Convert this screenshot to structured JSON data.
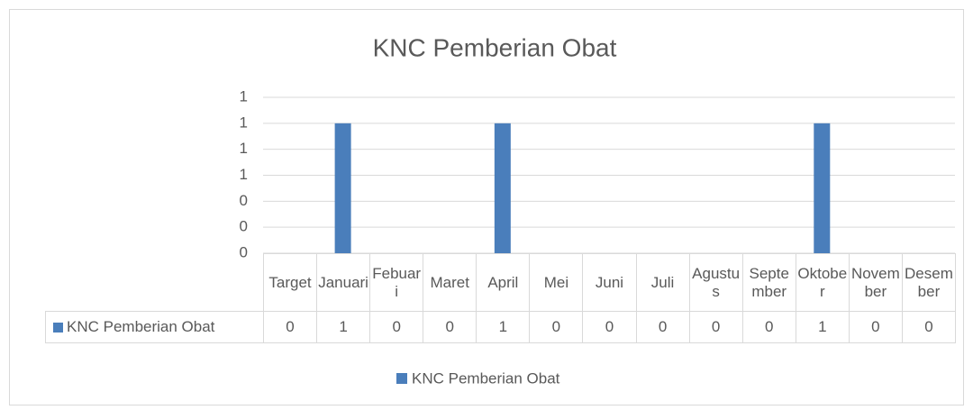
{
  "chart_data": {
    "type": "bar",
    "title": "KNC Pemberian Obat",
    "categories": [
      "Target",
      "Januari",
      "Febuari",
      "Maret",
      "April",
      "Mei",
      "Juni",
      "Juli",
      "Agustus",
      "September",
      "Oktober",
      "November",
      "Desember"
    ],
    "series": [
      {
        "name": "KNC Pemberian Obat",
        "color": "#4a7ebb",
        "values": [
          0,
          1,
          0,
          0,
          1,
          0,
          0,
          0,
          0,
          0,
          1,
          0,
          0
        ]
      }
    ],
    "ylim": [
      0,
      1.2
    ],
    "yticks": [
      0,
      {
        "value": 0.2,
        "label": "0"
      },
      {
        "value": 0.4,
        "label": "0"
      },
      {
        "value": 0.6,
        "label": "1"
      },
      {
        "value": 0.8,
        "label": "1"
      },
      1,
      {
        "value": 1.2,
        "label": "1"
      }
    ],
    "grid": true,
    "legend": "bottom"
  }
}
